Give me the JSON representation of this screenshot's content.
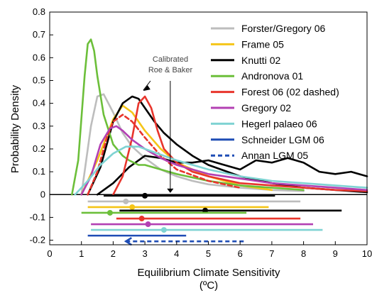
{
  "chart_data": {
    "type": "line",
    "xlabel": "Equilibrium Climate Sensitivity",
    "xlabel_unit": "(ºC)",
    "ylabel": "Probability Density",
    "xlim": [
      0,
      10
    ],
    "ylim": [
      -0.22,
      0.8
    ],
    "x_ticks": [
      "0",
      "1",
      "2",
      "3",
      "4",
      "5",
      "6",
      "7",
      "8",
      "9",
      "10"
    ],
    "y_ticks": [
      "-0.2",
      "-0.1",
      "0",
      "0.1",
      "0.2",
      "0.3",
      "0.4",
      "0.5",
      "0.6",
      "0.7",
      "0.8"
    ],
    "annotation": "Calibrated\nRoe & Baker",
    "annotation_arrow_x": 3.8,
    "legend_position": "top-right",
    "series": [
      {
        "name": "Forster/Gregory 06",
        "color": "#bdbdbd",
        "dash": false,
        "x": [
          1.0,
          1.3,
          1.5,
          1.7,
          2.0,
          2.3,
          2.6,
          3.0,
          3.5,
          4.0,
          4.5,
          5.0,
          6.0,
          7.0,
          8.0
        ],
        "y": [
          0.0,
          0.3,
          0.43,
          0.44,
          0.36,
          0.27,
          0.21,
          0.16,
          0.11,
          0.08,
          0.06,
          0.045,
          0.03,
          0.02,
          0.015
        ],
        "bar": {
          "row": 1,
          "from": 1.2,
          "to": 7.9,
          "dot": 2.4
        }
      },
      {
        "name": "Frame 05",
        "color": "#f5c518",
        "dash": false,
        "x": [
          1.0,
          1.5,
          2.0,
          2.3,
          2.6,
          3.0,
          3.5,
          4.0,
          5.0,
          6.0,
          7.0
        ],
        "y": [
          0.0,
          0.15,
          0.33,
          0.39,
          0.36,
          0.28,
          0.2,
          0.14,
          0.08,
          0.04,
          0.02
        ],
        "bar": {
          "row": 2,
          "from": 1.2,
          "to": 6.9,
          "dot": 2.6
        }
      },
      {
        "name": "Knutti 02",
        "color": "#000000",
        "dash": false,
        "x": [
          1.2,
          1.6,
          2.0,
          2.3,
          2.6,
          2.8,
          3.0,
          3.3,
          3.6,
          4.0,
          4.5,
          5.0,
          6.0,
          7.0,
          8.0,
          9.0,
          10.0
        ],
        "y": [
          0.0,
          0.12,
          0.32,
          0.4,
          0.43,
          0.42,
          0.38,
          0.32,
          0.27,
          0.22,
          0.17,
          0.13,
          0.08,
          0.05,
          0.03,
          0.02,
          0.01
        ],
        "bar": {
          "row": 0,
          "from": 1.7,
          "to": 7.1,
          "dot": 3.0
        }
      },
      {
        "name": "Knutti 02",
        "color": "#000000",
        "dash": false,
        "legend": false,
        "x": [
          1.5,
          2.0,
          2.5,
          3.0,
          3.5,
          4.0,
          4.5,
          5.0,
          5.5,
          6.0,
          6.5,
          7.0,
          7.5,
          8.0,
          8.5,
          9.0,
          9.5,
          10.0
        ],
        "y": [
          0.0,
          0.05,
          0.12,
          0.17,
          0.16,
          0.14,
          0.14,
          0.15,
          0.13,
          0.11,
          0.15,
          0.14,
          0.16,
          0.14,
          0.1,
          0.09,
          0.1,
          0.08
        ],
        "bar": {
          "row": 2.6,
          "from": 2.2,
          "to": 9.2,
          "dot": 4.9
        }
      },
      {
        "name": "Andronova 01",
        "color": "#6cbf3a",
        "dash": false,
        "x": [
          0.7,
          0.9,
          1.1,
          1.2,
          1.3,
          1.4,
          1.5,
          1.7,
          2.0,
          2.3,
          2.5,
          2.8,
          3.0,
          3.5,
          4.0,
          5.0,
          6.0,
          7.0,
          8.0
        ],
        "y": [
          0.0,
          0.15,
          0.52,
          0.66,
          0.68,
          0.63,
          0.52,
          0.35,
          0.22,
          0.17,
          0.15,
          0.13,
          0.13,
          0.11,
          0.09,
          0.06,
          0.04,
          0.03,
          0.02
        ],
        "bar": {
          "row": 3,
          "from": 1.0,
          "to": 6.2,
          "dot": 1.9
        }
      },
      {
        "name": "Forest 06 (02 dashed)",
        "color": "#e8352c",
        "dash": false,
        "x": [
          2.0,
          2.3,
          2.6,
          2.8,
          3.0,
          3.2,
          3.4,
          3.6,
          4.0,
          4.5,
          5.0,
          6.0,
          7.0,
          8.0,
          9.0,
          10.0
        ],
        "y": [
          0.0,
          0.08,
          0.25,
          0.4,
          0.43,
          0.38,
          0.28,
          0.2,
          0.14,
          0.1,
          0.08,
          0.05,
          0.04,
          0.03,
          0.02,
          0.015
        ],
        "bar": {
          "row": 4,
          "from": 2.1,
          "to": 7.9,
          "dot": 2.9
        }
      },
      {
        "name": "Forest 06 (02 dashed)",
        "color": "#e8352c",
        "dash": true,
        "legend": false,
        "x": [
          1.2,
          1.5,
          1.8,
          2.0,
          2.3,
          2.6,
          3.0,
          3.5,
          4.0,
          5.0,
          6.0
        ],
        "y": [
          0.0,
          0.1,
          0.25,
          0.32,
          0.35,
          0.32,
          0.25,
          0.17,
          0.11,
          0.06,
          0.03
        ]
      },
      {
        "name": "Gregory 02",
        "color": "#b340b3",
        "dash": false,
        "x": [
          1.0,
          1.3,
          1.6,
          1.9,
          2.1,
          2.3,
          2.6,
          3.0,
          3.5,
          4.0,
          5.0,
          6.0,
          7.0,
          8.0,
          9.0,
          10.0
        ],
        "y": [
          0.0,
          0.08,
          0.22,
          0.29,
          0.3,
          0.28,
          0.24,
          0.2,
          0.16,
          0.13,
          0.09,
          0.07,
          0.05,
          0.04,
          0.03,
          0.02
        ],
        "bar": {
          "row": 5,
          "from": 1.3,
          "to": 8.3,
          "dot": 3.1
        }
      },
      {
        "name": "Hegerl palaeo 06",
        "color": "#7fd3d3",
        "dash": false,
        "x": [
          0.8,
          1.2,
          1.6,
          2.0,
          2.4,
          2.8,
          3.0,
          3.4,
          4.0,
          5.0,
          6.0,
          7.0,
          8.0,
          9.0,
          10.0
        ],
        "y": [
          0.0,
          0.06,
          0.13,
          0.18,
          0.21,
          0.21,
          0.2,
          0.18,
          0.15,
          0.11,
          0.08,
          0.06,
          0.05,
          0.04,
          0.03
        ],
        "bar": {
          "row": 6,
          "from": 1.3,
          "to": 8.6,
          "dot": 3.6
        }
      },
      {
        "name": "Schneider LGM 06",
        "color": "#1f4db5",
        "dash": false,
        "bar": {
          "row": 7,
          "from": 1.2,
          "to": 4.3,
          "dot": null
        }
      },
      {
        "name": "Annan LGM 05",
        "color": "#1f4db5",
        "dash": true,
        "bar": {
          "row": 8,
          "from": 2.4,
          "to": 6.2,
          "dot": null,
          "arrow_left": true
        }
      }
    ]
  }
}
